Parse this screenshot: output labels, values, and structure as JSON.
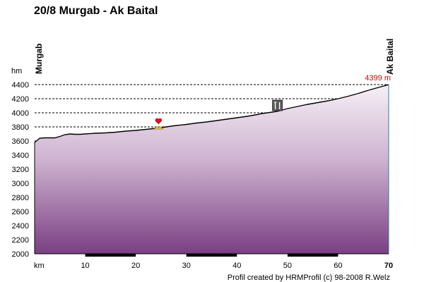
{
  "chart_data": {
    "type": "area",
    "title": "20/8 Murgab - Ak Baital",
    "xlabel": "km",
    "ylabel": "hm",
    "xlim": [
      0,
      70
    ],
    "ylim": [
      2000,
      4400
    ],
    "x_ticks": [
      10,
      20,
      30,
      40,
      50,
      60,
      70
    ],
    "y_ticks": [
      2000,
      2200,
      2400,
      2600,
      2800,
      3000,
      3200,
      3400,
      3600,
      3800,
      4000,
      4200,
      4400
    ],
    "grid": true,
    "start_label": "Murgab",
    "end_label": "Ak Baital",
    "end_elevation_label": "4399 m",
    "credit": "Profil created by HRMProfil (c) 98-2008 R.Welz",
    "series": [
      {
        "x": [
          0,
          1,
          2,
          4,
          5,
          6,
          7,
          8,
          9,
          10,
          12,
          14,
          16,
          18,
          20,
          22,
          24,
          26,
          28,
          30,
          32,
          34,
          36,
          38,
          40,
          42,
          44,
          45,
          46,
          47,
          48,
          50,
          52,
          54,
          56,
          58,
          60,
          62,
          64,
          66,
          68,
          70
        ],
        "y": [
          3580,
          3640,
          3645,
          3645,
          3665,
          3690,
          3700,
          3695,
          3695,
          3700,
          3710,
          3715,
          3725,
          3740,
          3750,
          3765,
          3780,
          3800,
          3820,
          3835,
          3855,
          3870,
          3890,
          3910,
          3930,
          3950,
          3975,
          3990,
          4000,
          4010,
          4020,
          4060,
          4090,
          4120,
          4145,
          4170,
          4200,
          4235,
          4275,
          4320,
          4360,
          4399
        ]
      }
    ],
    "markers": [
      {
        "icon": "heart-icon",
        "x": 24.5,
        "y": 3780
      },
      {
        "icon": "restaurant-icon",
        "x": 48,
        "y": 4020
      }
    ]
  }
}
